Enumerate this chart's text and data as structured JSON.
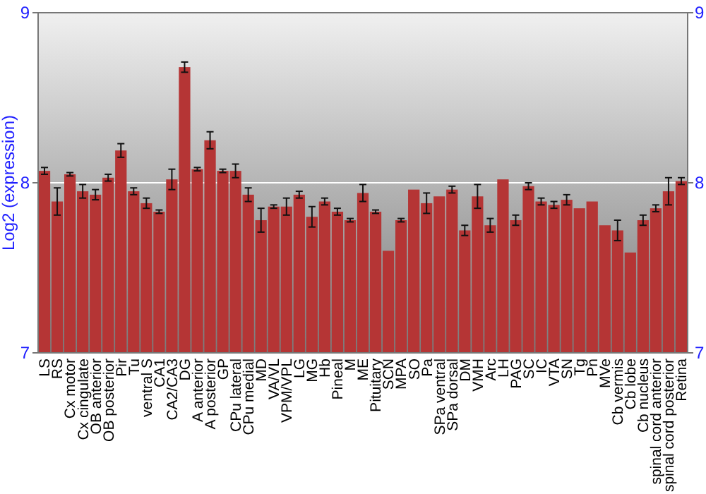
{
  "chart_data": {
    "type": "bar",
    "ylabel": "Log2 (expression)",
    "categories": [
      "LS",
      "RS",
      "Cx motor",
      "Cx cingulate",
      "OB anterior",
      "OB posterior",
      "Pir",
      "Tu",
      "ventral S",
      "CA1",
      "CA2/CA3",
      "DG",
      "A anterior",
      "A posterior",
      "GP",
      "CPu lateral",
      "CPu medial",
      "MD",
      "VA/VL",
      "VPM/VPL",
      "LG",
      "MG",
      "Hb",
      "Pineal",
      "M",
      "ME",
      "Pituitary",
      "SCN",
      "MPA",
      "SO",
      "Pa",
      "SPa ventral",
      "SPa dorsal",
      "DM",
      "VMH",
      "Arc",
      "LH",
      "PAG",
      "SC",
      "IC",
      "VTA",
      "SN",
      "Tg",
      "Pn",
      "MVe",
      "Cb vermis",
      "Cb lobe",
      "Cb nucleus",
      "spinal cord anterior",
      "spinal cord posterior",
      "Retina"
    ],
    "values": [
      8.07,
      7.89,
      8.05,
      7.95,
      7.93,
      8.03,
      8.19,
      7.95,
      7.88,
      7.83,
      8.02,
      8.68,
      8.08,
      8.25,
      8.07,
      8.07,
      7.93,
      7.78,
      7.86,
      7.86,
      7.93,
      7.8,
      7.89,
      7.83,
      7.78,
      7.94,
      7.83,
      7.6,
      7.78,
      7.96,
      7.88,
      7.92,
      7.96,
      7.72,
      7.92,
      7.75,
      8.02,
      7.78,
      7.98,
      7.89,
      7.87,
      7.9,
      7.85,
      7.89,
      7.75,
      7.72,
      7.59,
      7.78,
      7.85,
      7.95,
      8.01
    ],
    "errors": [
      0.02,
      0.08,
      0.01,
      0.04,
      0.03,
      0.02,
      0.04,
      0.02,
      0.03,
      0.01,
      0.06,
      0.03,
      0.01,
      0.05,
      0.01,
      0.04,
      0.04,
      0.07,
      0.01,
      0.05,
      0.02,
      0.06,
      0.02,
      0.02,
      0.01,
      0.05,
      0.01,
      null,
      0.01,
      null,
      0.06,
      null,
      0.02,
      0.03,
      0.07,
      0.04,
      null,
      0.03,
      0.02,
      0.02,
      0.02,
      0.03,
      null,
      null,
      null,
      0.06,
      null,
      0.03,
      0.02,
      0.08,
      0.02
    ],
    "color": "#b53535",
    "ylim": [
      7,
      9
    ],
    "yticks": [
      7,
      8,
      9
    ],
    "y2lim": [
      7,
      9
    ],
    "y2ticks": [
      7,
      8,
      9
    ],
    "grid": "y"
  }
}
